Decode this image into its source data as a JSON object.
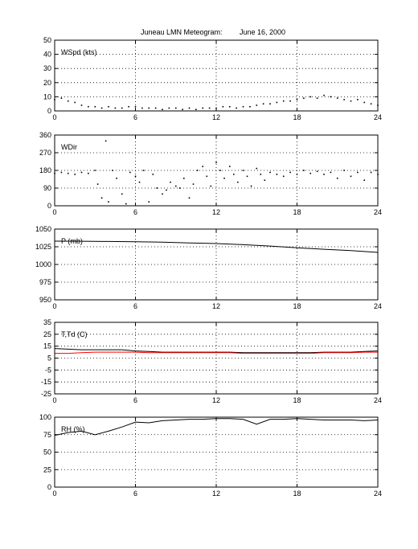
{
  "title": "Juneau LMN Meteogram:",
  "date": "June 16, 2000",
  "chart_data": [
    {
      "type": "scatter",
      "panel_label": "WSpd (kts)",
      "xlim": [
        0,
        24
      ],
      "ylim": [
        0,
        50
      ],
      "x_ticks": [
        0,
        6,
        12,
        18,
        24
      ],
      "y_ticks": [
        0,
        10,
        20,
        30,
        40,
        50
      ],
      "grid": true,
      "series": [
        {
          "color": "#000000",
          "x": [
            0,
            0.5,
            1,
            1.5,
            2,
            2.5,
            3,
            3.5,
            4,
            4.5,
            5,
            5.5,
            6,
            6.5,
            7,
            7.5,
            8,
            8.5,
            9,
            9.5,
            10,
            10.5,
            11,
            11.5,
            12,
            12.5,
            13,
            13.5,
            14,
            14.5,
            15,
            15.5,
            16,
            16.5,
            17,
            17.5,
            18,
            18.5,
            19,
            19.5,
            20,
            20.5,
            21,
            21.5,
            22,
            22.5,
            23,
            23.5,
            24
          ],
          "values": [
            8,
            9,
            7,
            6,
            4,
            3,
            3,
            2,
            3,
            2,
            2,
            3,
            3,
            2,
            2,
            2,
            1,
            2,
            2,
            1,
            2,
            1,
            2,
            2,
            2,
            3,
            3,
            2,
            3,
            3,
            4,
            5,
            5,
            6,
            7,
            7,
            8,
            9,
            10,
            9,
            11,
            10,
            9,
            8,
            7,
            8,
            6,
            5,
            4
          ]
        }
      ]
    },
    {
      "type": "scatter",
      "panel_label": "WDir",
      "xlim": [
        0,
        24
      ],
      "ylim": [
        0,
        360
      ],
      "x_ticks": [
        0,
        6,
        12,
        18,
        24
      ],
      "y_ticks": [
        0,
        90,
        180,
        270,
        360
      ],
      "grid": true,
      "series": [
        {
          "color": "#000000",
          "x": [
            0,
            0.5,
            1,
            1.5,
            2,
            2.5,
            3,
            3.2,
            3.5,
            3.8,
            4,
            4.3,
            4.6,
            5,
            5.3,
            5.6,
            6,
            6.3,
            6.6,
            7,
            7.3,
            7.6,
            8,
            8.3,
            8.6,
            9,
            9.3,
            9.6,
            10,
            10.3,
            10.6,
            11,
            11.3,
            11.6,
            12,
            12.3,
            12.6,
            13,
            13.3,
            13.6,
            14,
            14.3,
            14.6,
            15,
            15.3,
            15.6,
            16,
            16.5,
            17,
            17.5,
            18,
            18.5,
            19,
            19.5,
            20,
            20.5,
            21,
            21.5,
            22,
            22.5,
            23,
            23.5,
            24
          ],
          "values": [
            165,
            170,
            165,
            160,
            170,
            165,
            180,
            110,
            40,
            330,
            20,
            180,
            140,
            60,
            10,
            170,
            150,
            120,
            180,
            20,
            160,
            90,
            60,
            80,
            120,
            100,
            90,
            140,
            40,
            110,
            180,
            200,
            150,
            100,
            220,
            180,
            140,
            200,
            160,
            120,
            180,
            150,
            100,
            190,
            160,
            130,
            170,
            160,
            150,
            170,
            160,
            180,
            165,
            175,
            160,
            170,
            140,
            180,
            150,
            170,
            130,
            170,
            160
          ]
        }
      ]
    },
    {
      "type": "line",
      "panel_label": "P (mb)",
      "xlim": [
        0,
        24
      ],
      "ylim": [
        950,
        1050
      ],
      "x_ticks": [
        0,
        6,
        12,
        18,
        24
      ],
      "y_ticks": [
        950,
        975,
        1000,
        1025,
        1050
      ],
      "grid": true,
      "series": [
        {
          "color": "#000000",
          "x": [
            0,
            2,
            4,
            6,
            8,
            10,
            12,
            14,
            16,
            18,
            20,
            22,
            24
          ],
          "values": [
            1033,
            1032.8,
            1032.5,
            1032,
            1031.5,
            1030.5,
            1029.5,
            1028,
            1026,
            1023.5,
            1021.5,
            1019.5,
            1017
          ]
        }
      ]
    },
    {
      "type": "line",
      "panel_label": "T,Td (C)",
      "xlim": [
        0,
        24
      ],
      "ylim": [
        -25,
        35
      ],
      "x_ticks": [
        0,
        6,
        12,
        18,
        24
      ],
      "y_ticks": [
        -25,
        -15,
        -5,
        5,
        15,
        25,
        35
      ],
      "grid": true,
      "series": [
        {
          "color": "#000000",
          "x": [
            0,
            1,
            2,
            3,
            4,
            5,
            6,
            7,
            8,
            9,
            10,
            11,
            12,
            13,
            14,
            15,
            16,
            17,
            18,
            19,
            20,
            21,
            22,
            23,
            24
          ],
          "values": [
            13,
            12.5,
            12,
            12,
            12,
            12,
            11,
            10.5,
            10,
            10,
            10,
            10,
            10,
            10,
            9.5,
            9.5,
            9.5,
            9.5,
            9.5,
            9.5,
            10,
            10,
            10,
            10.5,
            11
          ]
        },
        {
          "color": "#ff0000",
          "x": [
            0,
            1,
            2,
            3,
            4,
            5,
            6,
            7,
            8,
            9,
            10,
            11,
            12,
            13,
            14,
            15,
            16,
            17,
            18,
            19,
            20,
            21,
            22,
            23,
            24
          ],
          "values": [
            9,
            9,
            9.5,
            10,
            10,
            10,
            10,
            9.5,
            9.5,
            9.5,
            9.5,
            9.5,
            9.5,
            9.5,
            9,
            9,
            9,
            9,
            9,
            9,
            9.5,
            9.5,
            9.5,
            10,
            10
          ]
        }
      ]
    },
    {
      "type": "line",
      "panel_label": "RH (%)",
      "xlim": [
        0,
        24
      ],
      "ylim": [
        0,
        100
      ],
      "x_ticks": [
        0,
        6,
        12,
        18,
        24
      ],
      "y_ticks": [
        0,
        25,
        50,
        75,
        100
      ],
      "grid": true,
      "series": [
        {
          "color": "#000000",
          "x": [
            0,
            1,
            2,
            3,
            4,
            5,
            6,
            7,
            8,
            9,
            10,
            11,
            12,
            13,
            14,
            15,
            16,
            17,
            18,
            19,
            20,
            21,
            22,
            23,
            24
          ],
          "values": [
            74,
            78,
            80,
            75,
            80,
            86,
            93,
            92,
            95,
            96,
            97,
            97,
            98,
            98,
            97,
            90,
            97,
            97,
            98,
            97,
            96,
            96,
            96,
            95,
            96
          ]
        }
      ]
    }
  ]
}
